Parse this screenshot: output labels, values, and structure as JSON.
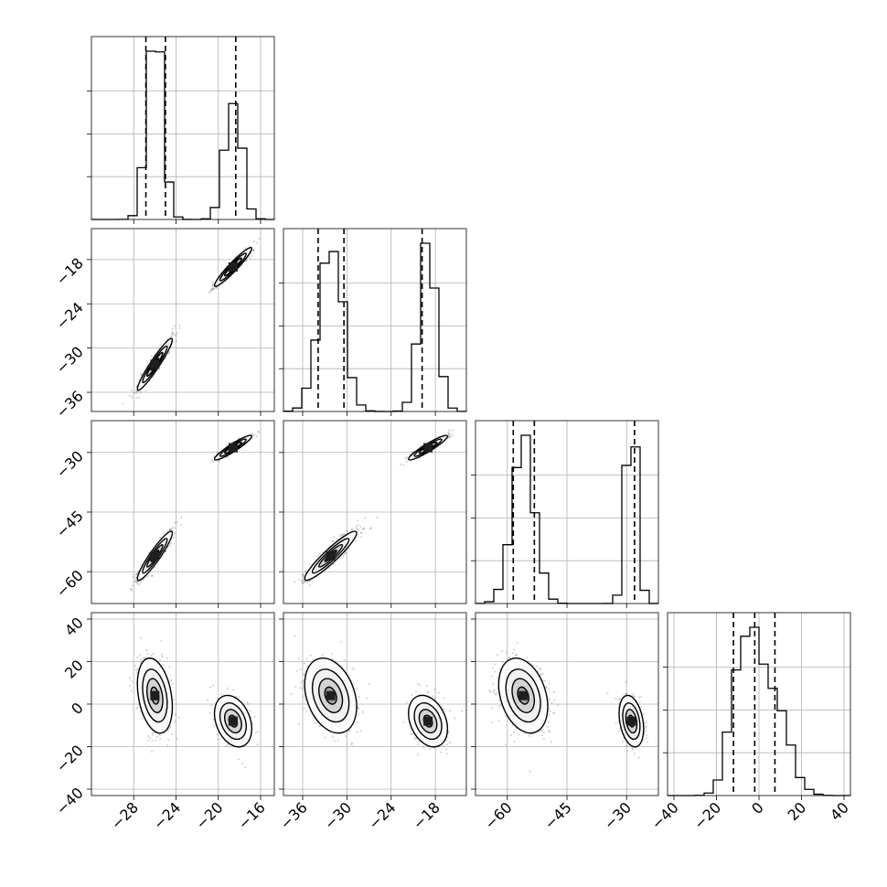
{
  "chart_data": {
    "type": "corner",
    "grid": true,
    "parameters": [
      {
        "range": [
          -32.0,
          -14.7
        ],
        "ticks": [
          -28,
          -24,
          -20,
          -16
        ],
        "tick_labels": [
          "−28",
          "−24",
          "−20",
          "−16"
        ],
        "quantiles": [
          -26.85,
          -25.0,
          -18.35
        ],
        "modes": [
          {
            "mean": -26.0,
            "sd": 0.75,
            "weight": 0.6
          },
          {
            "mean": -18.6,
            "sd": 0.8,
            "weight": 0.4
          }
        ],
        "hist_max": 2.0
      },
      {
        "range": [
          -38.6,
          -13.8
        ],
        "ticks": [
          -36,
          -30,
          -24,
          -18
        ],
        "tick_labels": [
          "−36",
          "−30",
          "−24",
          "−18"
        ],
        "quantiles": [
          -33.9,
          -30.4,
          -19.8
        ],
        "modes": [
          {
            "mean": -32.2,
            "sd": 1.6,
            "weight": 0.6
          },
          {
            "mean": -19.0,
            "sd": 1.2,
            "weight": 0.4
          }
        ],
        "hist_max": 1.0
      },
      {
        "range": [
          -68.0,
          -22.0
        ],
        "ticks": [
          -60,
          -45,
          -30
        ],
        "tick_labels": [
          "−60",
          "−45",
          "−30"
        ],
        "quantiles": [
          -58.5,
          -53.2,
          -28.0
        ],
        "modes": [
          {
            "mean": -56.0,
            "sd": 2.8,
            "weight": 0.6
          },
          {
            "mean": -28.8,
            "sd": 1.4,
            "weight": 0.4
          }
        ],
        "hist_max": 1.0
      },
      {
        "range": [
          -43.0,
          43.0
        ],
        "ticks": [
          -40,
          -20,
          0,
          20,
          40
        ],
        "tick_labels": [
          "−40",
          "−20",
          "0",
          "20",
          "40"
        ],
        "quantiles": [
          -12.0,
          -2.0,
          7.5
        ],
        "modes": [
          {
            "mean": 4.0,
            "sd": 8.0,
            "weight": 0.6
          },
          {
            "mean": -8.0,
            "sd": 5.5,
            "weight": 0.4
          }
        ],
        "hist_max": 1.0
      }
    ]
  }
}
